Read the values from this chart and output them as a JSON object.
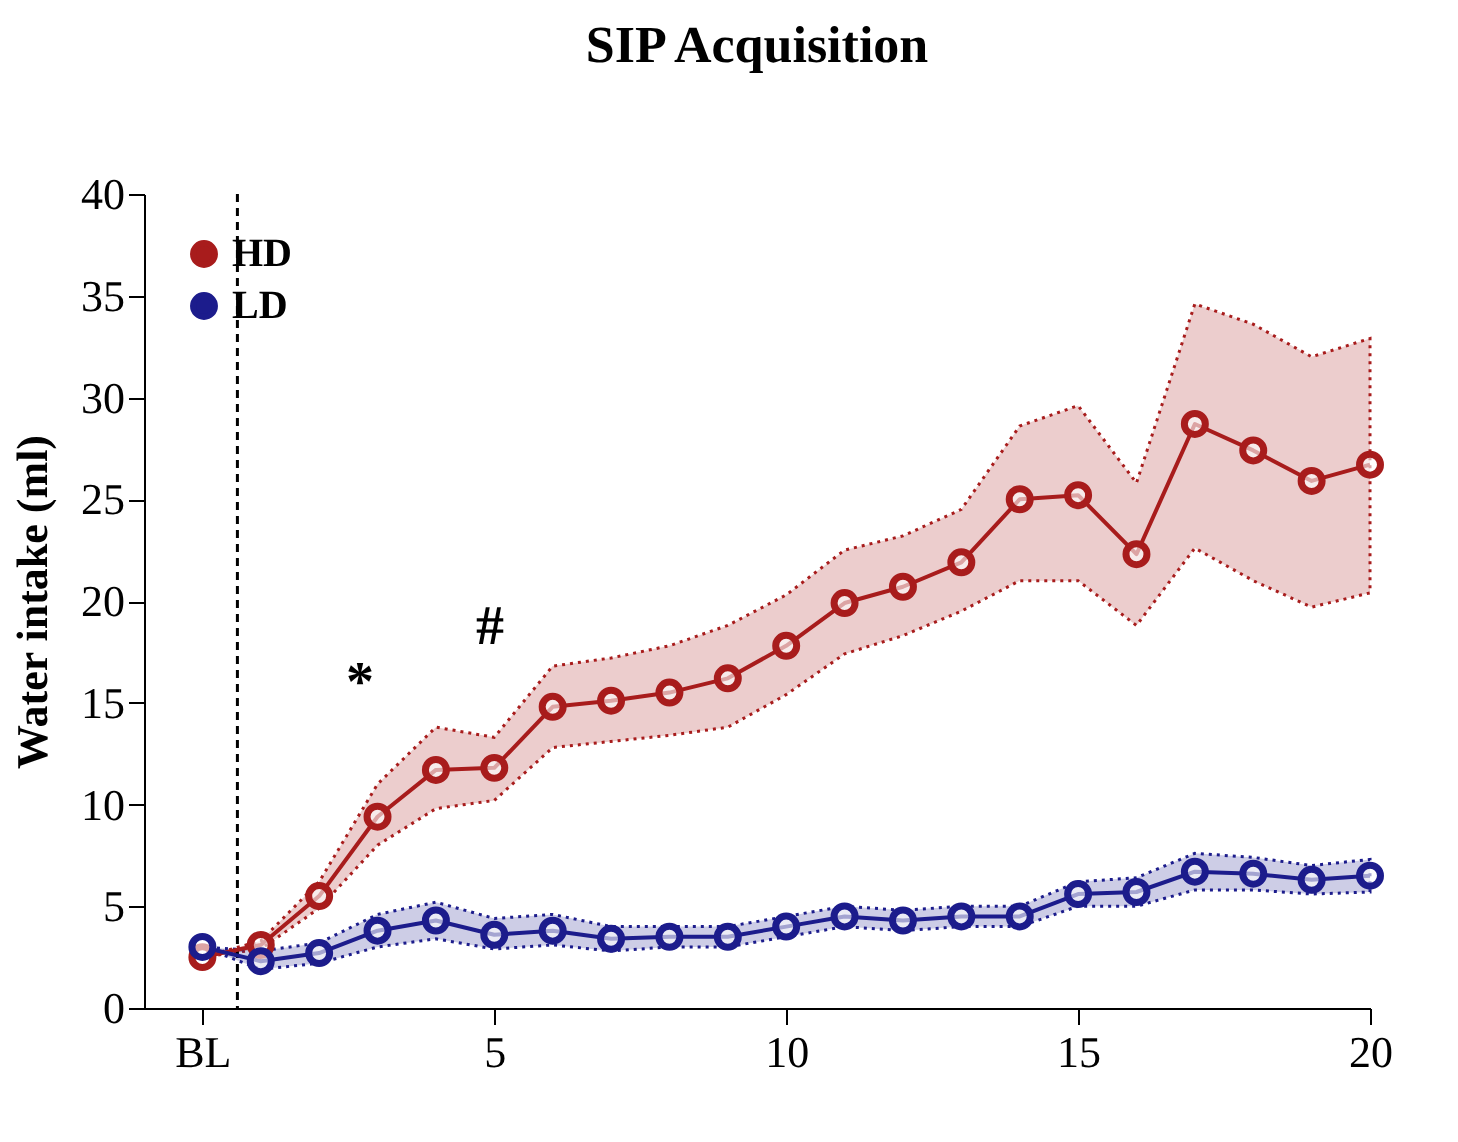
{
  "chart_data": {
    "type": "line",
    "title": "SIP Acquisition",
    "ylabel": "Water intake (ml)",
    "x": [
      0,
      1,
      2,
      3,
      4,
      5,
      6,
      7,
      8,
      9,
      10,
      11,
      12,
      13,
      14,
      15,
      16,
      17,
      18,
      19,
      20
    ],
    "series": [
      {
        "name": "HD",
        "color": "#a81c1c",
        "values": [
          2.5,
          3.1,
          5.5,
          9.4,
          11.7,
          11.8,
          14.8,
          15.1,
          15.5,
          16.2,
          17.8,
          19.9,
          20.7,
          21.9,
          25.0,
          25.2,
          22.3,
          28.7,
          27.4,
          25.9,
          26.7
        ],
        "upper": [
          2.5,
          3.3,
          6.2,
          11.0,
          13.8,
          13.3,
          16.8,
          17.2,
          17.8,
          18.8,
          20.3,
          22.5,
          23.2,
          24.5,
          28.6,
          29.6,
          25.8,
          34.6,
          33.6,
          32.0,
          32.9
        ],
        "lower": [
          2.5,
          2.9,
          4.9,
          8.0,
          9.8,
          10.2,
          12.8,
          13.1,
          13.4,
          13.8,
          15.4,
          17.4,
          18.3,
          19.5,
          21.0,
          21.0,
          18.8,
          22.6,
          21.0,
          19.7,
          20.4
        ]
      },
      {
        "name": "LD",
        "color": "#1c1c8c",
        "values": [
          3.0,
          2.3,
          2.7,
          3.8,
          4.3,
          3.6,
          3.8,
          3.4,
          3.5,
          3.5,
          4.0,
          4.5,
          4.3,
          4.5,
          4.5,
          5.6,
          5.7,
          6.7,
          6.6,
          6.3,
          6.5
        ],
        "upper": [
          3.0,
          2.8,
          3.2,
          4.6,
          5.2,
          4.4,
          4.6,
          4.0,
          4.0,
          4.0,
          4.5,
          5.0,
          4.8,
          5.0,
          5.0,
          6.2,
          6.4,
          7.6,
          7.4,
          7.0,
          7.3
        ],
        "lower": [
          3.0,
          1.9,
          2.2,
          3.0,
          3.4,
          2.9,
          3.1,
          2.8,
          3.0,
          3.0,
          3.5,
          4.0,
          3.8,
          4.0,
          4.0,
          5.0,
          5.0,
          5.8,
          5.8,
          5.6,
          5.7
        ]
      }
    ],
    "xlim": [
      -1,
      20
    ],
    "xticks": [
      {
        "value": 0,
        "label": "BL"
      },
      5,
      10,
      15,
      20
    ],
    "ylim": [
      0,
      40
    ],
    "yticks": [
      0,
      5,
      10,
      15,
      20,
      25,
      30,
      35,
      40
    ],
    "ref_lines": [
      {
        "axis": "x",
        "value": 0.6,
        "line_style": "dashed",
        "color": "#000000"
      }
    ],
    "annotations": [
      "*",
      "#"
    ],
    "legend": "top left",
    "grid": false,
    "marker": "circle",
    "line_style": "solid"
  }
}
